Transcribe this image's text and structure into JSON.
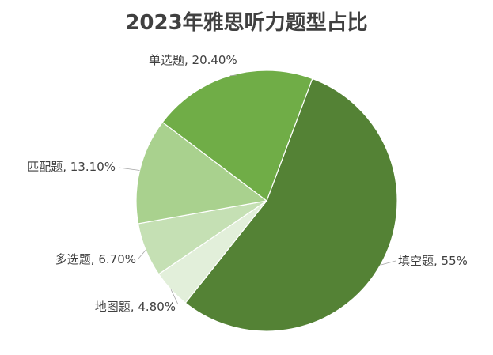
{
  "chart_data": {
    "type": "pie",
    "title": "2023年雅思听力题型占比",
    "slices": [
      {
        "name": "填空题",
        "value": 55,
        "value_label": "55%",
        "color": "#548235"
      },
      {
        "name": "地图题",
        "value": 4.8,
        "value_label": "4.80%",
        "color": "#e2efda"
      },
      {
        "name": "多选题",
        "value": 6.7,
        "value_label": "6.70%",
        "color": "#c5e0b4"
      },
      {
        "name": "匹配题",
        "value": 13.1,
        "value_label": "13.10%",
        "color": "#a9d18e"
      },
      {
        "name": "单选题",
        "value": 20.4,
        "value_label": "20.40%",
        "color": "#70ad47"
      }
    ],
    "labels": [
      "填空题, 55%",
      "地图题, 4.80%",
      "多选题, 6.70%",
      "匹配题, 13.10%",
      "单选题, 20.40%"
    ],
    "legend": "none"
  }
}
